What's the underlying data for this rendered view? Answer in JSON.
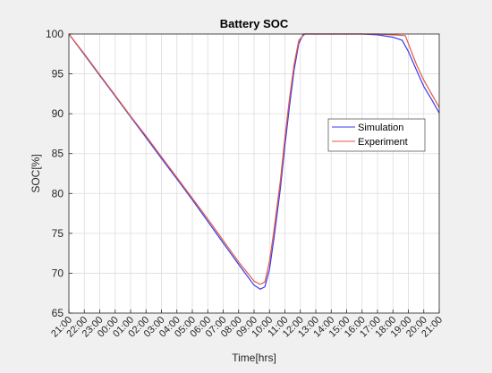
{
  "chart_data": {
    "type": "line",
    "title": "Battery SOC",
    "xlabel": "Time[hrs]",
    "ylabel": "SOC[%]",
    "x_ticks": [
      "21:00",
      "22:00",
      "23:00",
      "00:00",
      "01:00",
      "02:00",
      "03:00",
      "04:00",
      "05:00",
      "06:00",
      "07:00",
      "08:00",
      "09:00",
      "10:00",
      "11:00",
      "12:00",
      "13:00",
      "14:00",
      "15:00",
      "16:00",
      "17:00",
      "18:00",
      "19:00",
      "20:00",
      "21:00"
    ],
    "xlim": [
      0,
      24
    ],
    "x_tick_values": [
      0,
      1,
      2,
      3,
      4,
      5,
      6,
      7,
      8,
      9,
      10,
      11,
      12,
      13,
      14,
      15,
      16,
      17,
      18,
      19,
      20,
      21,
      22,
      23,
      24
    ],
    "y_ticks": [
      "65",
      "70",
      "75",
      "80",
      "85",
      "90",
      "95",
      "100"
    ],
    "y_tick_values": [
      65,
      70,
      75,
      80,
      85,
      90,
      95,
      100
    ],
    "ylim": [
      65,
      100
    ],
    "grid": true,
    "legend_position": "right",
    "series": [
      {
        "name": "Simulation",
        "color": "#3a3af0",
        "points": [
          [
            0,
            100
          ],
          [
            1,
            97.4
          ],
          [
            2,
            94.8
          ],
          [
            3,
            92.2
          ],
          [
            4,
            89.6
          ],
          [
            5,
            87.0
          ],
          [
            6,
            84.4
          ],
          [
            7,
            81.8
          ],
          [
            8,
            79.2
          ],
          [
            9,
            76.5
          ],
          [
            10,
            73.8
          ],
          [
            11,
            71.1
          ],
          [
            12,
            68.5
          ],
          [
            12.4,
            68.0
          ],
          [
            12.7,
            68.3
          ],
          [
            13.0,
            70.5
          ],
          [
            13.3,
            74.5
          ],
          [
            13.7,
            80.5
          ],
          [
            14.0,
            86.0
          ],
          [
            14.3,
            91.0
          ],
          [
            14.6,
            95.5
          ],
          [
            14.9,
            98.8
          ],
          [
            15.2,
            100
          ],
          [
            16,
            100
          ],
          [
            17,
            100
          ],
          [
            18,
            100
          ],
          [
            19,
            100
          ],
          [
            20,
            99.9
          ],
          [
            21,
            99.6
          ],
          [
            21.6,
            99.2
          ],
          [
            22,
            97.8
          ],
          [
            22.5,
            95.6
          ],
          [
            23,
            93.4
          ],
          [
            23.5,
            91.8
          ],
          [
            24,
            90.1
          ]
        ]
      },
      {
        "name": "Experiment",
        "color": "#e05a40",
        "points": [
          [
            0,
            100
          ],
          [
            1,
            97.5
          ],
          [
            2,
            94.9
          ],
          [
            3,
            92.3
          ],
          [
            4,
            89.7
          ],
          [
            5,
            87.2
          ],
          [
            6,
            84.6
          ],
          [
            7,
            82.0
          ],
          [
            8,
            79.4
          ],
          [
            9,
            76.8
          ],
          [
            10,
            74.1
          ],
          [
            11,
            71.4
          ],
          [
            12,
            69.0
          ],
          [
            12.4,
            68.6
          ],
          [
            12.7,
            68.9
          ],
          [
            13.0,
            71.5
          ],
          [
            13.3,
            75.5
          ],
          [
            13.7,
            81.5
          ],
          [
            14.0,
            87.0
          ],
          [
            14.3,
            92.0
          ],
          [
            14.6,
            96.2
          ],
          [
            14.9,
            99.2
          ],
          [
            15.3,
            100
          ],
          [
            16,
            100
          ],
          [
            17,
            100
          ],
          [
            18,
            100
          ],
          [
            19,
            100
          ],
          [
            20,
            100
          ],
          [
            21,
            99.9
          ],
          [
            21.8,
            99.8
          ],
          [
            22.1,
            98.3
          ],
          [
            22.5,
            96.3
          ],
          [
            23,
            94.2
          ],
          [
            23.5,
            92.5
          ],
          [
            24,
            90.8
          ]
        ]
      }
    ]
  }
}
